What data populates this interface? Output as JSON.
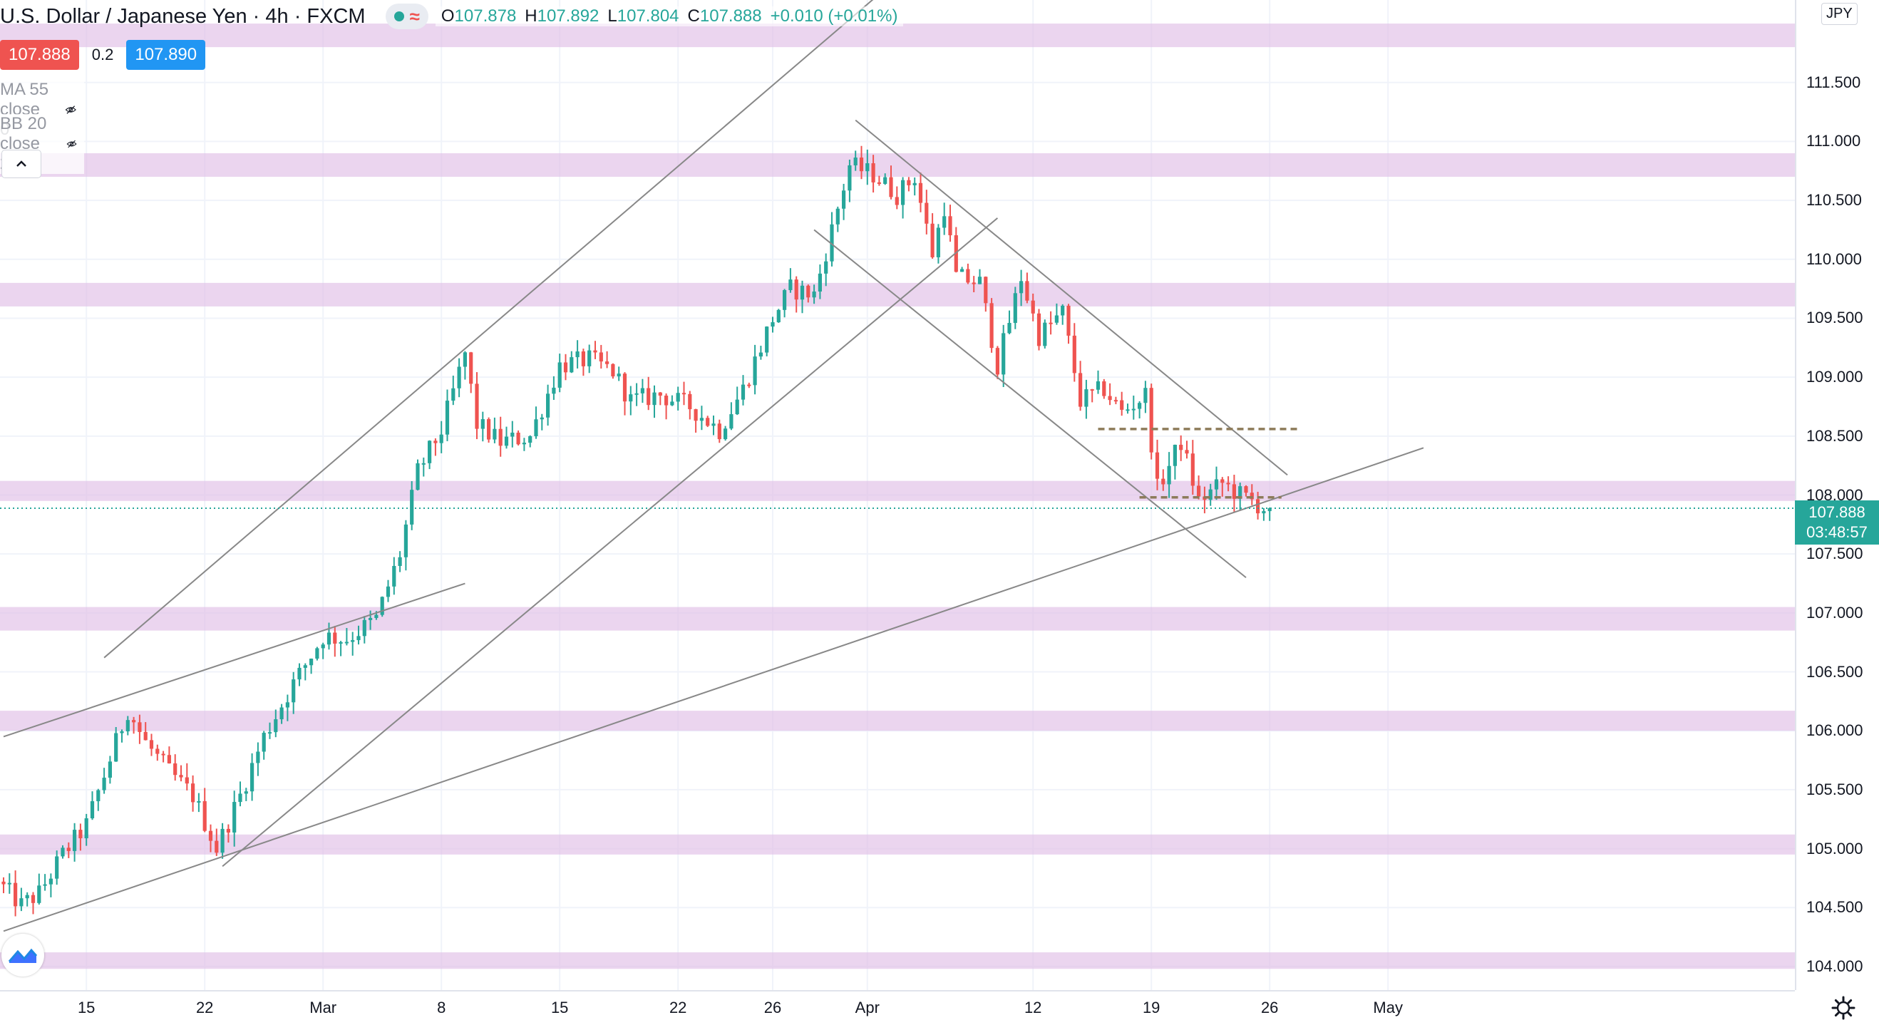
{
  "legend": {
    "title": "U.S. Dollar / Japanese Yen · 4h · FXCM",
    "ohlc": [
      {
        "key": "O",
        "value": "107.878"
      },
      {
        "key": "H",
        "value": "107.892"
      },
      {
        "key": "L",
        "value": "107.804"
      },
      {
        "key": "C",
        "value": "107.888"
      }
    ],
    "change": "+0.010 (+0.01%)",
    "sell_price": "107.888",
    "spread": "0.2",
    "buy_price": "107.890",
    "indicators": [
      {
        "label": "MA 55 close 0",
        "icon": "eye-off-icon"
      },
      {
        "label": "BB 20 close 2 0",
        "icon": "eye-off-icon"
      }
    ]
  },
  "price_axis": {
    "currency": "JPY",
    "last_price": "107.888",
    "countdown": "03:48:57"
  },
  "colors": {
    "up": "#26a69a",
    "down": "#ef5350",
    "zone": "#e1bee7",
    "trendline": "#888888",
    "level": "#8d7b5a",
    "sell": "#ef5350",
    "buy": "#2196f3"
  },
  "chart_data": {
    "type": "candlestick",
    "symbol": "USDJPY",
    "interval": "4h",
    "ylim": [
      103.8,
      112.2
    ],
    "y_ticks": [
      "104.000",
      "104.500",
      "105.000",
      "105.500",
      "106.000",
      "106.500",
      "107.000",
      "107.500",
      "108.000",
      "108.500",
      "109.000",
      "109.500",
      "110.000",
      "110.500",
      "111.000",
      "111.500"
    ],
    "x_ticks": [
      "15",
      "22",
      "Mar",
      "8",
      "15",
      "22",
      "26",
      "Apr",
      "12",
      "19",
      "26",
      "May"
    ],
    "x_tick_bars": [
      14,
      34,
      54,
      74,
      94,
      114,
      130,
      146,
      174,
      194,
      214,
      234
    ],
    "bar_count": 215,
    "anchors": [
      {
        "bar": 0,
        "price": 104.72
      },
      {
        "bar": 4,
        "price": 104.52
      },
      {
        "bar": 7,
        "price": 104.62
      },
      {
        "bar": 11,
        "price": 104.95
      },
      {
        "bar": 15,
        "price": 105.2
      },
      {
        "bar": 18,
        "price": 105.62
      },
      {
        "bar": 22,
        "price": 106.18
      },
      {
        "bar": 25,
        "price": 105.9
      },
      {
        "bar": 29,
        "price": 105.65
      },
      {
        "bar": 33,
        "price": 105.45
      },
      {
        "bar": 37,
        "price": 105.0
      },
      {
        "bar": 41,
        "price": 105.45
      },
      {
        "bar": 45,
        "price": 105.95
      },
      {
        "bar": 50,
        "price": 106.4
      },
      {
        "bar": 55,
        "price": 106.8
      },
      {
        "bar": 59,
        "price": 106.78
      },
      {
        "bar": 64,
        "price": 106.95
      },
      {
        "bar": 68,
        "price": 107.5
      },
      {
        "bar": 71,
        "price": 108.2
      },
      {
        "bar": 75,
        "price": 108.55
      },
      {
        "bar": 79,
        "price": 109.2
      },
      {
        "bar": 81,
        "price": 108.6
      },
      {
        "bar": 85,
        "price": 108.45
      },
      {
        "bar": 90,
        "price": 108.5
      },
      {
        "bar": 95,
        "price": 109.1
      },
      {
        "bar": 100,
        "price": 109.15
      },
      {
        "bar": 104,
        "price": 109.05
      },
      {
        "bar": 107,
        "price": 108.8
      },
      {
        "bar": 112,
        "price": 108.85
      },
      {
        "bar": 117,
        "price": 108.75
      },
      {
        "bar": 122,
        "price": 108.55
      },
      {
        "bar": 126,
        "price": 108.9
      },
      {
        "bar": 131,
        "price": 109.5
      },
      {
        "bar": 134,
        "price": 109.75
      },
      {
        "bar": 138,
        "price": 109.7
      },
      {
        "bar": 141,
        "price": 110.25
      },
      {
        "bar": 144,
        "price": 110.8
      },
      {
        "bar": 148,
        "price": 110.72
      },
      {
        "bar": 152,
        "price": 110.55
      },
      {
        "bar": 155,
        "price": 110.7
      },
      {
        "bar": 158,
        "price": 110.05
      },
      {
        "bar": 160,
        "price": 110.45
      },
      {
        "bar": 162,
        "price": 109.85
      },
      {
        "bar": 166,
        "price": 109.8
      },
      {
        "bar": 169,
        "price": 109.1
      },
      {
        "bar": 173,
        "price": 109.85
      },
      {
        "bar": 176,
        "price": 109.35
      },
      {
        "bar": 180,
        "price": 109.55
      },
      {
        "bar": 183,
        "price": 108.8
      },
      {
        "bar": 187,
        "price": 108.9
      },
      {
        "bar": 190,
        "price": 108.7
      },
      {
        "bar": 194,
        "price": 108.85
      },
      {
        "bar": 196,
        "price": 108.05
      },
      {
        "bar": 200,
        "price": 108.45
      },
      {
        "bar": 203,
        "price": 107.95
      },
      {
        "bar": 207,
        "price": 108.1
      },
      {
        "bar": 210,
        "price": 108.0
      },
      {
        "bar": 212,
        "price": 107.95
      },
      {
        "bar": 214,
        "price": 107.888
      }
    ],
    "last_price": 107.888,
    "zones": [
      {
        "from": 111.8,
        "to": 112.0
      },
      {
        "from": 110.7,
        "to": 110.9
      },
      {
        "from": 109.6,
        "to": 109.8
      },
      {
        "from": 107.95,
        "to": 108.12
      },
      {
        "from": 106.85,
        "to": 107.05
      },
      {
        "from": 106.0,
        "to": 106.17
      },
      {
        "from": 104.95,
        "to": 105.12
      },
      {
        "from": 103.98,
        "to": 104.12
      }
    ],
    "trendlines": [
      {
        "from": {
          "bar": 17,
          "price": 106.62
        },
        "to": {
          "bar": 148,
          "price": 112.25
        }
      },
      {
        "from": {
          "bar": 37,
          "price": 104.85
        },
        "to": {
          "bar": 168,
          "price": 110.35
        }
      },
      {
        "from": {
          "bar": 0,
          "price": 105.95
        },
        "to": {
          "bar": 78,
          "price": 107.25
        }
      },
      {
        "from": {
          "bar": 0,
          "price": 104.3
        },
        "to": {
          "bar": 240,
          "price": 108.4
        }
      },
      {
        "from": {
          "bar": 137,
          "price": 110.25
        },
        "to": {
          "bar": 210,
          "price": 107.3
        }
      },
      {
        "from": {
          "bar": 144,
          "price": 111.18
        },
        "to": {
          "bar": 217,
          "price": 108.17
        }
      }
    ],
    "levels": [
      {
        "price": 108.56,
        "from_bar": 185,
        "to_bar": 219
      },
      {
        "price": 107.98,
        "from_bar": 192,
        "to_bar": 216
      }
    ]
  }
}
